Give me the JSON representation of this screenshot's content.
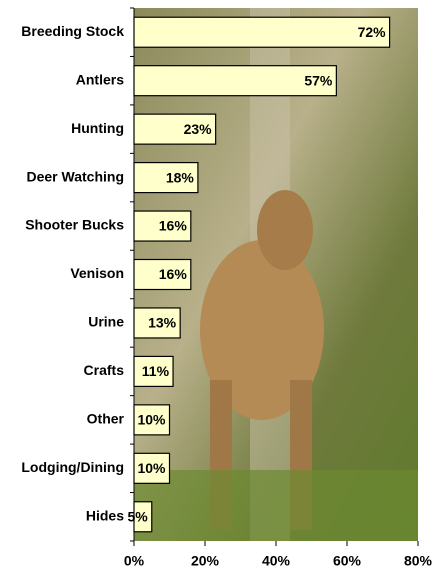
{
  "chart_data": {
    "type": "hbar",
    "categories": [
      "Breeding Stock",
      "Antlers",
      "Hunting",
      "Deer Watching",
      "Shooter Bucks",
      "Venison",
      "Urine",
      "Crafts",
      "Other",
      "Lodging/Dining",
      "Hides"
    ],
    "values": [
      72,
      57,
      23,
      18,
      16,
      16,
      13,
      11,
      10,
      10,
      5
    ],
    "value_labels": [
      "72%",
      "57%",
      "23%",
      "18%",
      "16%",
      "16%",
      "13%",
      "11%",
      "10%",
      "10%",
      "5%"
    ],
    "color": "#ffffcc",
    "xlim": [
      0,
      80
    ],
    "xticks": [
      {
        "value": 0,
        "label": "0%"
      },
      {
        "value": 20,
        "label": "20%"
      },
      {
        "value": 40,
        "label": "40%"
      },
      {
        "value": 60,
        "label": "60%"
      },
      {
        "value": 80,
        "label": "80%"
      }
    ]
  }
}
